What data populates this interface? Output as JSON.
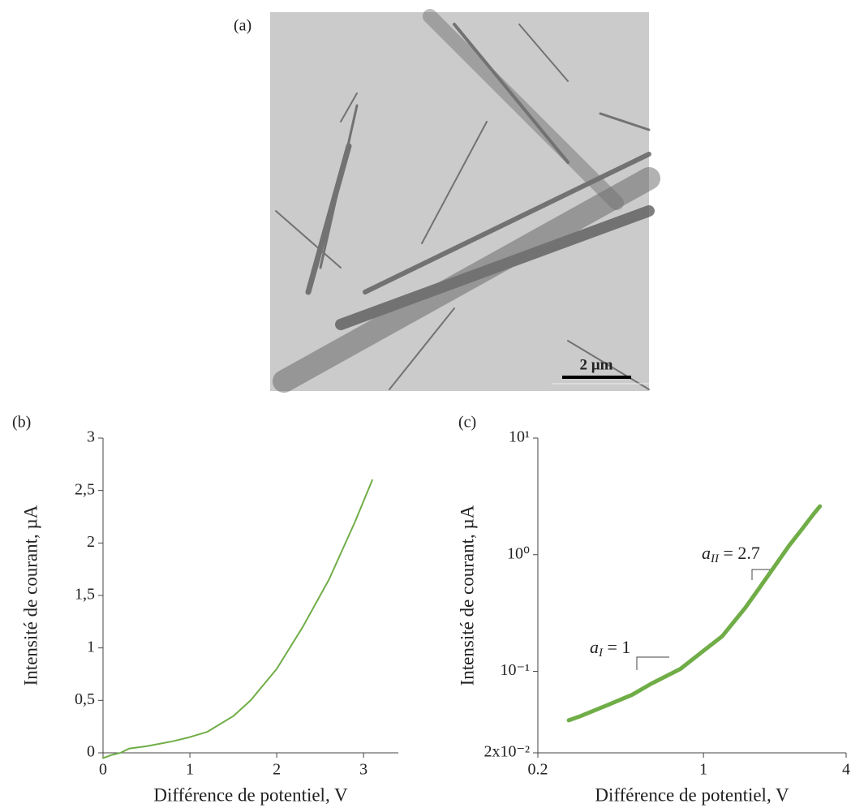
{
  "figure": {
    "panel_label": "(a)",
    "scale_bar": "2 µm"
  },
  "chart_data": [
    {
      "type": "line",
      "panel_label": "(b)",
      "xlabel": "Différence de potentiel, V",
      "ylabel": "Intensité de courant, µA",
      "x": [
        0,
        0.1,
        0.2,
        0.3,
        0.5,
        0.6,
        0.8,
        1.0,
        1.2,
        1.5,
        1.7,
        2.0,
        2.3,
        2.6,
        2.9,
        3.1
      ],
      "values": [
        -0.05,
        -0.02,
        0,
        0.04,
        0.063,
        0.078,
        0.11,
        0.15,
        0.2,
        0.35,
        0.5,
        0.8,
        1.2,
        1.65,
        2.2,
        2.6
      ],
      "color": "#70ad47",
      "xlim": [
        0,
        3.4
      ],
      "ylim": [
        0,
        3
      ],
      "xticks": [
        0,
        1,
        2,
        3
      ],
      "yticks": [
        0,
        {
          "value": 0.5,
          "label": "0,5"
        },
        1,
        {
          "value": 1.5,
          "label": "1,5"
        },
        2,
        {
          "value": 2.5,
          "label": "2,5"
        },
        3
      ],
      "log_x": false,
      "log_y": false
    },
    {
      "type": "line",
      "panel_label": "(c)",
      "xlabel": "Différence de potentiel, V",
      "ylabel": "Intensité de courant, µA",
      "x": [
        0.27,
        0.3,
        0.4,
        0.5,
        0.6,
        0.8,
        1.0,
        1.2,
        1.5,
        1.7,
        2.0,
        2.3,
        2.6,
        2.9,
        3.1
      ],
      "values": [
        0.038,
        0.041,
        0.052,
        0.063,
        0.078,
        0.105,
        0.15,
        0.2,
        0.35,
        0.5,
        0.8,
        1.2,
        1.65,
        2.2,
        2.6
      ],
      "color": "#70ad47",
      "xlim": [
        0.2,
        4
      ],
      "ylim": [
        0.02,
        10
      ],
      "xticks": [
        0.2,
        1,
        4
      ],
      "yticks": [
        {
          "value": 0.02,
          "label": "2x10⁻²"
        },
        {
          "value": 0.1,
          "label": "10⁻¹"
        },
        {
          "value": 1,
          "label": "10⁰"
        },
        {
          "value": 10,
          "label": "10¹"
        }
      ],
      "log_x": true,
      "log_y": true,
      "annotations": [
        {
          "symbol": "a",
          "subscript": "I",
          "text": " = 1"
        },
        {
          "symbol": "a",
          "subscript": "II",
          "text": " = 2.7"
        }
      ]
    }
  ]
}
